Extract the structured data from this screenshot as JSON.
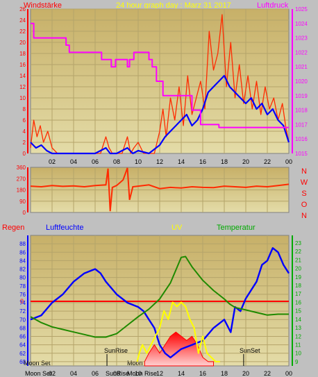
{
  "colors": {
    "background": "#c0c0c0",
    "plot_top": "#c7b068",
    "plot_bottom": "#e4dca8",
    "grid": "#b4a46a",
    "wind_gust": "#ff2a00",
    "wind_mean": "#0000ff",
    "pressure": "#ff00ff",
    "direction": "#ff2a00",
    "humidity": "#0000ff",
    "temperature": "#1f8a00",
    "uv": "#ffff00",
    "rain": "#ff0000",
    "label_red": "#ff0000",
    "label_blue": "#0000ff",
    "label_green": "#00aa00",
    "label_yellow": "#ffff00"
  },
  "header": {
    "left_label": "Windstärke",
    "title": "24 hour graph day : Marz 31 2017",
    "right_label": "Luftdruck"
  },
  "chart_data": [
    {
      "type": "line",
      "panel": "wind-pressure",
      "x_ticks": [
        "02",
        "04",
        "06",
        "08",
        "10",
        "12",
        "14",
        "16",
        "18",
        "20",
        "22",
        "00"
      ],
      "y_left_ticks": [
        "0",
        "2",
        "4",
        "6",
        "8",
        "10",
        "12",
        "14",
        "16",
        "18",
        "20",
        "22",
        "24",
        "26"
      ],
      "y_left_range": [
        0,
        26
      ],
      "y_right_ticks": [
        "1015",
        "1016",
        "1017",
        "1018",
        "1019",
        "1020",
        "1021",
        "1022",
        "1023",
        "1024",
        "1025"
      ],
      "y_right_range": [
        1015,
        1025
      ],
      "x_range": [
        0,
        24
      ],
      "series": [
        {
          "name": "Windstärke",
          "axis": "left",
          "style": "gust",
          "x": [
            0,
            0.3,
            0.6,
            0.9,
            1.2,
            1.6,
            2.0,
            2.5,
            3,
            4,
            5,
            5.8,
            6.5,
            7.0,
            7.3,
            7.6,
            8.0,
            8.5,
            9.0,
            9.3,
            9.6,
            10,
            10.5,
            11,
            11.5,
            12.0,
            12.3,
            12.6,
            13.0,
            13.4,
            13.8,
            14.2,
            14.6,
            15.0,
            15.4,
            15.8,
            16.2,
            16.6,
            17.0,
            17.4,
            17.8,
            18.2,
            18.6,
            19.0,
            19.4,
            19.8,
            20.2,
            20.6,
            21.0,
            21.4,
            21.8,
            22.2,
            22.6,
            23.0,
            23.4,
            23.7,
            24.0
          ],
          "y": [
            1,
            6,
            3,
            5,
            2,
            4,
            1,
            0,
            0,
            0,
            0,
            0,
            0,
            3,
            1,
            0,
            0,
            0,
            3,
            0,
            1,
            2,
            0,
            0,
            0,
            4,
            8,
            3,
            10,
            6,
            12,
            5,
            14,
            7,
            10,
            13,
            8,
            22,
            15,
            18,
            25,
            12,
            20,
            10,
            16,
            9,
            14,
            8,
            13,
            7,
            12,
            8,
            10,
            6,
            9,
            5,
            2
          ]
        },
        {
          "name": "Windstärke",
          "axis": "left",
          "style": "mean",
          "x": [
            0,
            0.5,
            1.0,
            1.5,
            2.0,
            3,
            4,
            5,
            6,
            7.0,
            7.4,
            8,
            9,
            9.5,
            10,
            11,
            12,
            12.5,
            13,
            13.5,
            14,
            14.5,
            15,
            15.5,
            16,
            16.5,
            17,
            17.5,
            18,
            18.5,
            19,
            19.5,
            20,
            20.5,
            21,
            21.5,
            22,
            22.5,
            23,
            23.5,
            24
          ],
          "y": [
            2,
            1,
            1.5,
            0.5,
            0,
            0,
            0,
            0,
            0,
            1,
            0,
            0,
            1,
            0,
            0.5,
            0,
            1.5,
            3,
            4,
            5,
            6,
            7,
            5,
            6,
            8,
            11,
            12,
            13,
            14,
            12,
            11,
            10,
            9,
            10,
            8,
            9,
            7,
            8,
            6,
            5,
            2
          ]
        },
        {
          "name": "Luftdruck",
          "axis": "right",
          "style": "pressure",
          "x": [
            0,
            0.3,
            0.3,
            3.3,
            3.3,
            3.6,
            3.6,
            6.6,
            6.6,
            7.5,
            7.5,
            7.9,
            7.9,
            9.0,
            9.0,
            9.2,
            9.2,
            9.6,
            9.6,
            11.0,
            11.0,
            11.3,
            11.3,
            11.7,
            11.7,
            12.3,
            12.3,
            15.0,
            15.0,
            15.8,
            15.8,
            17.5,
            17.5,
            24
          ],
          "y": [
            1024,
            1024,
            1023,
            1023,
            1022.5,
            1022.5,
            1022,
            1022,
            1021.5,
            1021.5,
            1021,
            1021,
            1021.5,
            1021.5,
            1021,
            1021,
            1021.5,
            1021.5,
            1022,
            1022,
            1021.5,
            1021.5,
            1021,
            1021,
            1020,
            1020,
            1019,
            1019,
            1018,
            1018,
            1017,
            1017,
            1016.8,
            1016.8
          ]
        }
      ]
    },
    {
      "type": "line",
      "panel": "direction",
      "y_ticks": [
        "0",
        "90",
        "180",
        "270",
        "360"
      ],
      "y_range": [
        0,
        360
      ],
      "compass": [
        "N",
        "W",
        "S",
        "O",
        "N"
      ],
      "x_range": [
        0,
        24
      ],
      "series": [
        {
          "name": "direction",
          "x": [
            0,
            1,
            2,
            3,
            4,
            5,
            6,
            7.0,
            7.2,
            7.4,
            7.6,
            8.0,
            8.6,
            9.0,
            9.2,
            9.5,
            10,
            11,
            12,
            13,
            14,
            15,
            16,
            17,
            18,
            19,
            20,
            21,
            22,
            23,
            24
          ],
          "y": [
            210,
            205,
            215,
            208,
            212,
            205,
            215,
            220,
            350,
            10,
            200,
            215,
            260,
            355,
            100,
            205,
            210,
            220,
            190,
            200,
            195,
            205,
            200,
            198,
            210,
            205,
            200,
            210,
            205,
            215,
            225
          ]
        }
      ]
    },
    {
      "type": "line",
      "panel": "humidity-temperature",
      "legend": {
        "rain": "Regen",
        "humidity": "Luftfeuchte",
        "uv": "UV",
        "temperature": "Temperatur"
      },
      "y_left_ticks": [
        "60",
        "62",
        "64",
        "66",
        "68",
        "70",
        "72",
        "74",
        "76",
        "78",
        "80",
        "82",
        "84",
        "86",
        "88"
      ],
      "y_left_range": [
        59,
        90
      ],
      "y_right_ticks": [
        "9",
        "10",
        "11",
        "12",
        "13",
        "14",
        "15",
        "16",
        "17",
        "18",
        "19",
        "20",
        "21",
        "22",
        "23"
      ],
      "y_right_range": [
        8.5,
        23.9
      ],
      "rain_axis_label": "0",
      "rain_value": 0,
      "x_ticks": [
        "02",
        "04",
        "06",
        "08",
        "10",
        "12",
        "14",
        "16",
        "18",
        "20",
        "22",
        "00"
      ],
      "x_range": [
        0,
        24
      ],
      "moon_set": {
        "label": "Moon Set",
        "hour": 0
      },
      "moon_rise": {
        "label": "Moon Rise",
        "hour": 10.2
      },
      "sun_rise": {
        "label": "SunRise",
        "hour": 7.1
      },
      "sun_set": {
        "label": "SunSet",
        "hour": 19.8
      },
      "series": [
        {
          "name": "Luftfeuchte",
          "axis": "left",
          "x": [
            0,
            1,
            2,
            3,
            4,
            5,
            6,
            6.5,
            7,
            8,
            9,
            10,
            10.5,
            11,
            11.5,
            12,
            12.5,
            13,
            14,
            15,
            16,
            17,
            18,
            18.6,
            19,
            19.5,
            20,
            21,
            21.5,
            22,
            22.5,
            23,
            23.5,
            24
          ],
          "y": [
            70,
            71,
            74,
            76,
            79,
            81,
            82,
            81,
            79,
            76,
            74,
            73,
            72,
            70,
            68,
            64,
            62,
            61,
            63,
            64,
            65,
            68,
            70,
            67,
            73,
            72,
            75,
            79,
            83,
            84,
            87,
            86,
            83,
            81
          ]
        },
        {
          "name": "Temperatur",
          "axis": "right",
          "x": [
            0,
            1,
            2,
            3,
            4,
            5,
            6,
            7,
            8,
            9,
            10,
            11,
            12,
            13,
            14,
            14.4,
            15,
            16,
            17,
            18,
            18.5,
            19,
            20,
            21,
            22,
            23,
            24
          ],
          "y": [
            14.3,
            13.6,
            13.1,
            12.8,
            12.5,
            12.2,
            11.9,
            11.9,
            12.3,
            13.3,
            14.3,
            15.2,
            16.4,
            18.3,
            21.3,
            21.4,
            20.2,
            18.6,
            17.4,
            16.4,
            15.8,
            15.4,
            15.1,
            14.8,
            14.5,
            14.6,
            14.6
          ]
        },
        {
          "name": "UV",
          "axis": "right",
          "style": "uv",
          "x": [
            9.9,
            10.1,
            10.4,
            10.8,
            11.2,
            11.6,
            12.0,
            12.4,
            12.8,
            13.2,
            13.6,
            14.0,
            14.4,
            14.8,
            15.2,
            15.6,
            16.0,
            16.4,
            16.8,
            17.2,
            17.6
          ],
          "y": [
            9,
            10,
            11,
            10,
            11,
            12,
            13,
            15,
            14,
            16,
            15.5,
            16,
            15.5,
            14,
            13,
            10,
            12,
            10,
            9.5,
            9,
            9
          ]
        },
        {
          "name": "Regen",
          "axis": "right",
          "style": "rain",
          "x": [
            10.6,
            11,
            11.5,
            12,
            12.5,
            13,
            13.5,
            14,
            14.5,
            15,
            15.5,
            16,
            16.5,
            17
          ],
          "y": [
            9,
            10,
            11,
            10,
            11,
            12,
            12.5,
            12,
            11.5,
            12,
            11,
            9.5,
            9,
            9
          ]
        }
      ]
    }
  ]
}
